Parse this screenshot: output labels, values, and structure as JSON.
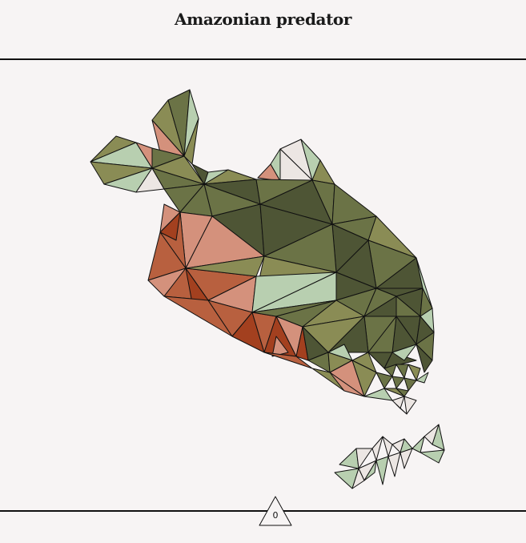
{
  "header": {
    "title": "Amazonian predator"
  },
  "game": {
    "score": "0",
    "palette": {
      "dark_green": "#4e5535",
      "olive": "#6b7346",
      "light_olive": "#8a8c55",
      "sage": "#b8cfb0",
      "pale": "#ece6e3",
      "salmon": "#d4917c",
      "terracotta": "#b8603f",
      "rust": "#a3401f"
    },
    "objects": {
      "piranha": "piranha",
      "bone": "fish-bone"
    }
  }
}
